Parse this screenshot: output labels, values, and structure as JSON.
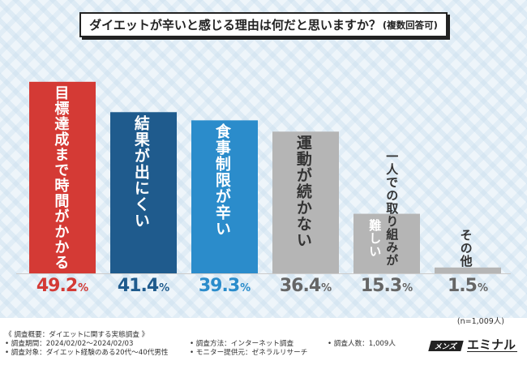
{
  "title": "ダイエットが辛いと感じる理由は何だと思いますか？",
  "title_sub": "(複数回答可)",
  "chart_data": {
    "type": "bar",
    "categories": [
      "目標達成まで時間がかかる",
      "結果が出にくい",
      "食事制限が辛い",
      "運動が続かない",
      "一人での取り組みが難しい",
      "その他"
    ],
    "label_lines": [
      [
        "目標達成まで時間がかかる"
      ],
      [
        "結果が出にくい"
      ],
      [
        "食事制限が辛い"
      ],
      [
        "運動が続かない"
      ],
      [
        "一人での取り組みが",
        "難しい"
      ],
      [
        "その他"
      ]
    ],
    "values": [
      49.2,
      41.4,
      39.3,
      36.4,
      15.3,
      1.5
    ],
    "value_labels": [
      "49.2",
      "41.4",
      "39.3",
      "36.4",
      "15.3",
      "1.5"
    ],
    "unit": "%",
    "bar_colors": [
      "#d43a35",
      "#1f5b8d",
      "#2b8ccb",
      "#b5b5b5",
      "#b5b5b5",
      "#b5b5b5"
    ],
    "label_colors": [
      "#ffffff",
      "#ffffff",
      "#ffffff",
      "#333333",
      "#333333",
      "#333333"
    ],
    "pct_colors": [
      "#d43a35",
      "#1f5b8d",
      "#2b8ccb",
      "#666666",
      "#666666",
      "#666666"
    ],
    "ylim": [
      0,
      50
    ],
    "grid": false,
    "xlabel": "",
    "ylabel": ""
  },
  "sample_size": "(n=1,009人)",
  "footer": {
    "overview": "《 調査概要：ダイエットに関する実態調査 》",
    "period": "• 調査期間：2024/02/02〜2024/02/03",
    "target": "• 調査対象：ダイエット経験のある20代〜40代男性",
    "method": "• 調査方法：インターネット調査",
    "provider": "• モニター提供元：ゼネラルリサーチ",
    "count": "• 調査人数：1,009人"
  },
  "brand": {
    "mark": "メンズ",
    "name": "エミナル"
  }
}
